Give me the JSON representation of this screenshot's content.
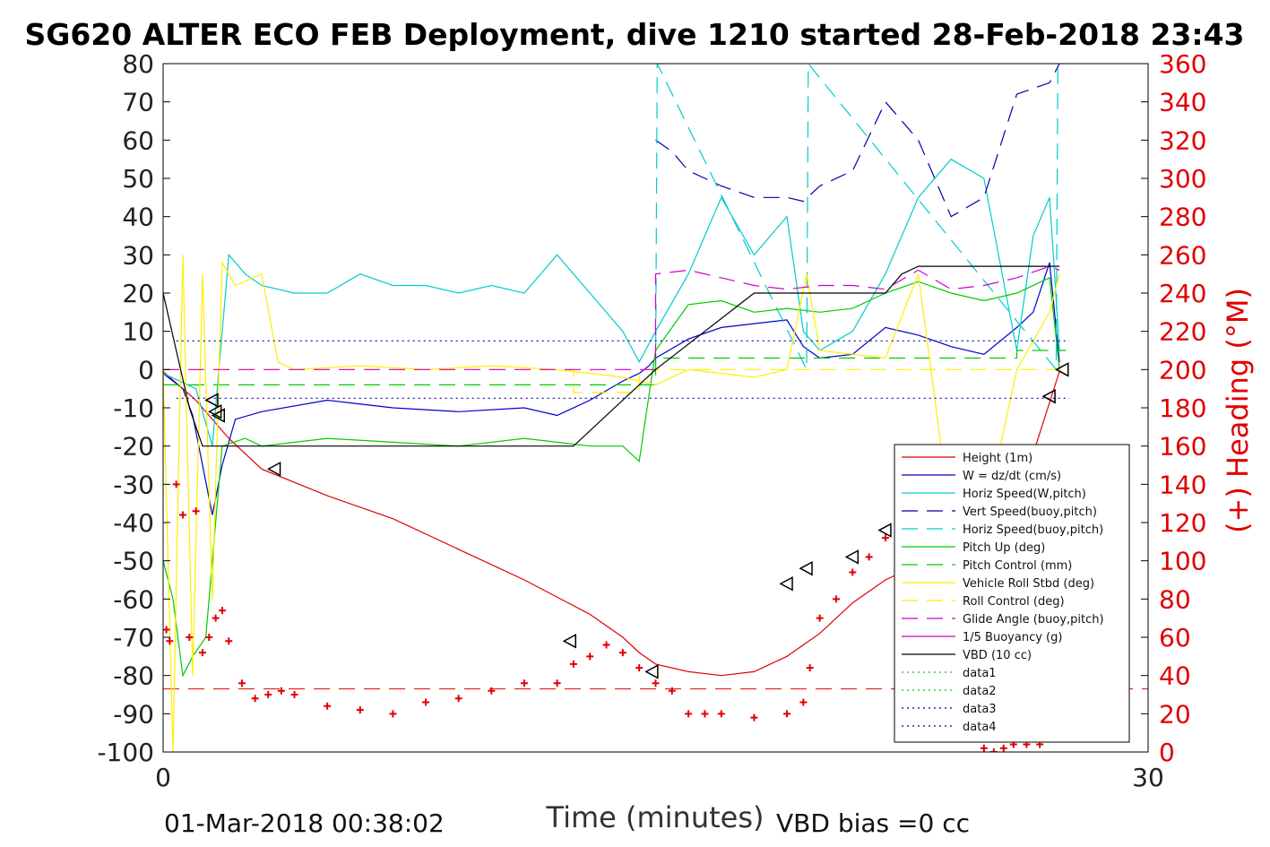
{
  "chart_data": {
    "type": "line",
    "title": "SG620 ALTER ECO FEB Deployment, dive 1210 started 28-Feb-2018 23:43",
    "xlabel": "Time (minutes)",
    "ylabel_right": "(+) Heading (°M)",
    "xlim": [
      0,
      30
    ],
    "ylim_left": [
      -100,
      80
    ],
    "ylim_right": [
      0,
      360
    ],
    "x_ticks": [
      "0",
      "30"
    ],
    "y_ticks_left": [
      "80",
      "70",
      "60",
      "50",
      "40",
      "30",
      "20",
      "10",
      "0",
      "-10",
      "-20",
      "-30",
      "-40",
      "-50",
      "-60",
      "-70",
      "-80",
      "-90",
      "-100"
    ],
    "y_ticks_right": [
      "360",
      "340",
      "320",
      "300",
      "280",
      "260",
      "240",
      "220",
      "200",
      "180",
      "160",
      "140",
      "120",
      "100",
      "80",
      "60",
      "40",
      "20",
      "0"
    ],
    "footer_left": "01-Mar-2018 00:38:02",
    "footer_right": "VBD bias =0 cc",
    "legend_placement": "lower-right",
    "grid": false,
    "series": [
      {
        "name": "Height (1m)",
        "color": "#e00000",
        "style": "solid",
        "x": [
          0,
          1,
          2,
          3,
          5,
          7,
          9,
          11,
          13,
          14,
          14.5,
          15,
          16,
          17,
          18,
          19,
          20,
          21,
          22,
          23,
          24,
          25,
          26,
          26.5,
          27.3
        ],
        "y": [
          -0.5,
          -8,
          -18,
          -26,
          -33,
          -39,
          -47,
          -55,
          -64,
          -70,
          -74,
          -77,
          -79,
          -80,
          -79,
          -75,
          -69,
          -61,
          -55,
          -51,
          -46,
          -39,
          -30,
          -22,
          -0.5
        ]
      },
      {
        "name": "W = dz/dt (cm/s)",
        "color": "#0000cc",
        "style": "solid",
        "x": [
          0,
          0.3,
          0.6,
          0.9,
          1.2,
          1.5,
          1.8,
          2.2,
          3,
          5,
          7,
          9,
          11,
          12,
          13,
          14,
          14.5,
          14.8,
          15,
          16,
          17,
          18,
          19,
          19.5,
          20,
          21,
          22,
          23,
          24,
          25,
          26,
          26.5,
          27,
          27.3
        ],
        "y": [
          -1,
          -3,
          -5,
          -12,
          -25,
          -38,
          -25,
          -13,
          -11,
          -8,
          -10,
          -11,
          -10,
          -12,
          -8,
          -3,
          -1,
          1,
          3,
          8,
          11,
          12,
          13,
          6,
          3,
          4,
          11,
          9,
          6,
          4,
          11,
          15,
          28,
          2
        ]
      },
      {
        "name": "Horiz Speed(W,pitch)",
        "color": "#00cccc",
        "style": "solid",
        "x": [
          0,
          0.5,
          1,
          1.5,
          2,
          2.5,
          3,
          4,
          5,
          6,
          7,
          8,
          9,
          10,
          11,
          12,
          12.5,
          13,
          14,
          14.5,
          15,
          16,
          17,
          18,
          19,
          19.5,
          20,
          21,
          22,
          23,
          24,
          25,
          26,
          26.5,
          27,
          27.3
        ],
        "y": [
          -1,
          -3,
          -5,
          -20,
          30,
          25,
          22,
          20,
          20,
          25,
          22,
          22,
          20,
          22,
          20,
          30,
          25,
          20,
          10,
          2,
          10,
          25,
          45,
          30,
          40,
          10,
          5,
          10,
          25,
          45,
          55,
          50,
          5,
          35,
          45,
          5
        ]
      },
      {
        "name": "Vert Speed(buoy,pitch)",
        "color": "#0000aa",
        "style": "dash",
        "x": [
          15,
          15.5,
          16,
          17,
          18,
          19,
          19.5,
          20,
          21,
          22,
          23,
          24,
          25,
          26,
          27,
          27.3
        ],
        "y": [
          60,
          57,
          52,
          48,
          45,
          45,
          44,
          48,
          52,
          70,
          60,
          40,
          45,
          72,
          75,
          80
        ]
      },
      {
        "name": "Horiz Speed(buoy,pitch)",
        "color": "#00cccc",
        "style": "dash",
        "x": [
          15,
          15.05,
          19.6,
          19.65,
          27.2,
          27.25
        ],
        "y": [
          0,
          80,
          0,
          80,
          0,
          80
        ]
      },
      {
        "name": "Pitch Up (deg)",
        "color": "#00cc00",
        "style": "solid",
        "x": [
          0,
          0.3,
          0.6,
          0.9,
          1.3,
          1.8,
          2.5,
          3,
          5,
          7,
          9,
          11,
          12,
          13,
          14,
          14.5,
          15,
          16,
          17,
          18,
          19,
          20,
          21,
          22,
          23,
          24,
          25,
          26,
          27,
          27.3
        ],
        "y": [
          -50,
          -60,
          -80,
          -75,
          -70,
          -20,
          -18,
          -20,
          -18,
          -19,
          -20,
          -18,
          -19,
          -20,
          -20,
          -24,
          5,
          17,
          18,
          15,
          16,
          15,
          16,
          20,
          23,
          20,
          18,
          20,
          24,
          0
        ]
      },
      {
        "name": "Pitch Control (mm)",
        "color": "#00cc00",
        "style": "dash",
        "x": [
          0,
          15,
          15,
          26,
          26,
          27.5
        ],
        "y": [
          -4,
          -4,
          3,
          3,
          5,
          5
        ]
      },
      {
        "name": "Vehicle Roll Stbd (deg)",
        "color": "#ffee00",
        "style": "solid",
        "x": [
          0,
          0.3,
          0.6,
          0.9,
          1.2,
          1.5,
          1.8,
          2.2,
          3,
          3.5,
          4,
          6,
          8,
          10,
          12,
          14,
          15,
          16,
          18,
          19,
          19.6,
          20,
          22,
          23,
          24,
          25,
          26,
          27,
          27.3
        ],
        "y": [
          0,
          -100,
          30,
          -80,
          25,
          -60,
          28,
          22,
          25,
          2,
          0,
          1,
          0,
          1,
          0,
          -2,
          -4,
          0,
          -2,
          0,
          25,
          5,
          3,
          25,
          -40,
          -40,
          0,
          15,
          25
        ]
      },
      {
        "name": "Roll Control (deg)",
        "color": "#ffee00",
        "style": "dash",
        "x": [
          0,
          12.5,
          12.5,
          14.5,
          14.5,
          19.6,
          19.6,
          22.5,
          22.5,
          25,
          25,
          27.5
        ],
        "y": [
          0,
          0,
          -6,
          -6,
          0,
          0,
          0,
          0,
          0,
          0,
          0,
          0
        ]
      },
      {
        "name": "Glide Angle (buoy,pitch)",
        "color": "#cc00cc",
        "style": "dash",
        "x": [
          0,
          15,
          15,
          16,
          17,
          18,
          19,
          20,
          21,
          22,
          23,
          24,
          25,
          26,
          27,
          27.3
        ],
        "y": [
          0,
          0,
          25,
          26,
          24,
          22,
          21,
          22,
          22,
          21,
          26,
          21,
          22,
          24,
          27,
          26
        ]
      },
      {
        "name": "1/5 Buoyancy (g)",
        "color": "#cc00cc",
        "style": "solid",
        "x": [],
        "y": []
      },
      {
        "name": "VBD (10 cc)",
        "color": "#000000",
        "style": "solid",
        "x": [
          0,
          0.8,
          1.2,
          12.5,
          15,
          18,
          19.5,
          22,
          22.5,
          23,
          27.3
        ],
        "y": [
          20,
          -10,
          -20,
          -20,
          0,
          20,
          20,
          20,
          25,
          27,
          27
        ]
      },
      {
        "name": "data1",
        "color": "#00cc00",
        "style": "dot",
        "x": [],
        "y": []
      },
      {
        "name": "data2",
        "color": "#00cc00",
        "style": "dot",
        "x": [],
        "y": []
      },
      {
        "name": "data3",
        "color": "#000099",
        "style": "dot",
        "x": [
          0.4,
          27.6
        ],
        "y": [
          7.5,
          7.5
        ]
      },
      {
        "name": "data4",
        "color": "#000099",
        "style": "dot",
        "x": [
          0.4,
          27.6
        ],
        "y": [
          -7.5,
          -7.5
        ]
      }
    ],
    "heading_points": {
      "color": "#e00000",
      "marker": "+",
      "x": [
        0.1,
        0.2,
        0.4,
        0.6,
        0.8,
        1.0,
        1.2,
        1.4,
        1.6,
        1.8,
        2.0,
        2.4,
        2.8,
        3.2,
        3.6,
        4,
        5,
        6,
        7,
        8,
        9,
        10,
        11,
        12,
        12.5,
        13,
        13.5,
        14,
        14.5,
        15,
        15.5,
        16,
        16.5,
        17,
        18,
        19,
        19.5,
        19.7,
        20,
        20.5,
        21,
        21.5,
        22,
        22.5,
        23,
        23.3,
        23.6,
        24,
        24.3,
        24.6,
        24.8,
        25,
        25.3,
        25.6,
        25.9,
        26.3,
        26.7,
        27.3
      ],
      "y": [
        64,
        58,
        140,
        124,
        60,
        126,
        52,
        60,
        70,
        74,
        58,
        36,
        28,
        30,
        32,
        30,
        24,
        22,
        20,
        26,
        28,
        32,
        36,
        36,
        46,
        50,
        56,
        52,
        44,
        36,
        32,
        20,
        20,
        20,
        18,
        20,
        26,
        44,
        70,
        80,
        94,
        102,
        112,
        122,
        146,
        150,
        126,
        110,
        70,
        30,
        10,
        2,
        0,
        2,
        4,
        4,
        4,
        8
      ]
    },
    "heading_reference": {
      "color": "#e00000",
      "style": "dash",
      "value": 33
    },
    "turn_markers": {
      "color": "#000000",
      "marker": "triangle-left",
      "x": [
        1.5,
        1.6,
        1.7,
        3.4,
        12.4,
        14.9,
        19.0,
        19.6,
        21.0,
        22.0,
        27.0,
        27.4
      ],
      "y": [
        -8,
        -11,
        -12,
        -26,
        -71,
        -79,
        -56,
        -52,
        -49,
        -42,
        -7,
        0
      ]
    }
  }
}
